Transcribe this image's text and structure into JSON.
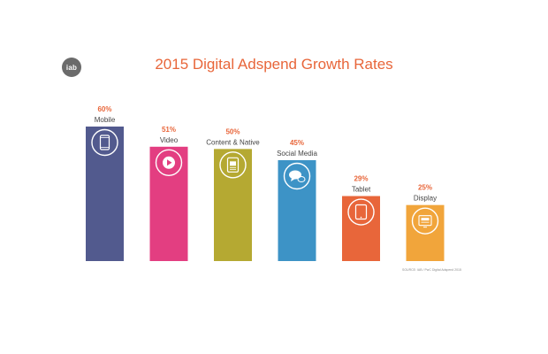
{
  "logo_text": "iab",
  "source": "SOURCE: IAB / PwC Digital Adspend 2015",
  "chart_data": {
    "type": "bar",
    "title": "2015 Digital Adspend Growth Rates",
    "categories": [
      "Mobile",
      "Video",
      "Content & Native",
      "Social Media",
      "Tablet",
      "Display"
    ],
    "values": [
      60,
      51,
      50,
      45,
      29,
      25
    ],
    "value_labels": [
      "60%",
      "51%",
      "50%",
      "45%",
      "29%",
      "25%"
    ],
    "ylim": [
      0,
      60
    ],
    "grid": false,
    "colors": [
      "#525a8e",
      "#e33e81",
      "#b5a932",
      "#3d93c6",
      "#e8663a",
      "#f1a53b"
    ],
    "icons": [
      "smartphone-icon",
      "play-icon",
      "content-icon",
      "chat-icon",
      "tablet-icon",
      "display-icon"
    ]
  }
}
